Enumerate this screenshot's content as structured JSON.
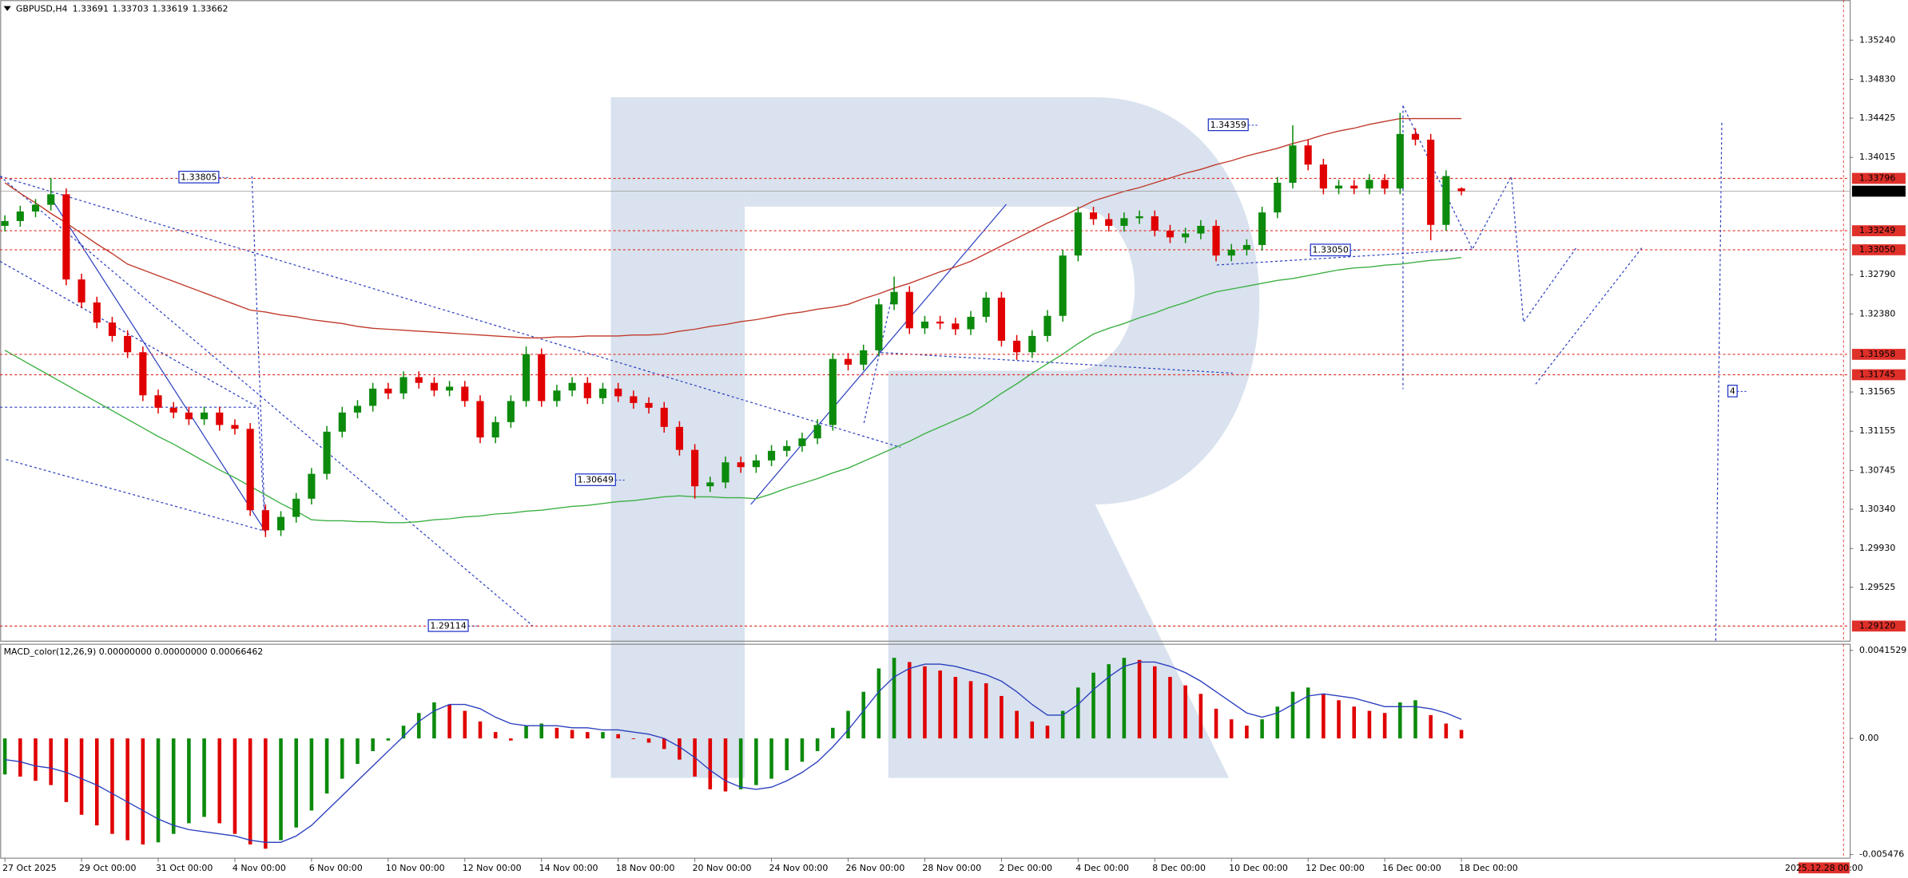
{
  "chart_data": {
    "type": "candlestick",
    "symbol": "GBPUSD,H4",
    "categories": [
      "27 Oct 2025",
      null,
      null,
      null,
      null,
      "29 Oct 00:00",
      null,
      null,
      null,
      null,
      "31 Oct 00:00",
      null,
      null,
      null,
      null,
      "4 Nov 00:00",
      null,
      null,
      null,
      null,
      "6 Nov 00:00",
      null,
      null,
      null,
      null,
      "10 Nov 00:00",
      null,
      null,
      null,
      null,
      "12 Nov 00:00",
      null,
      null,
      null,
      null,
      "14 Nov 00:00",
      null,
      null,
      null,
      null,
      "18 Nov 00:00",
      null,
      null,
      null,
      null,
      "20 Nov 00:00",
      null,
      null,
      null,
      null,
      "24 Nov 00:00",
      null,
      null,
      null,
      null,
      "26 Nov 00:00",
      null,
      null,
      null,
      null,
      "28 Nov 00:00",
      null,
      null,
      null,
      null,
      "2 Dec 00:00",
      null,
      null,
      null,
      null,
      "4 Dec 00:00",
      null,
      null,
      null,
      null,
      "8 Dec 00:00",
      null,
      null,
      null,
      null,
      "10 Dec 00:00",
      null,
      null,
      null,
      null,
      "12 Dec 00:00",
      null,
      null,
      null,
      null,
      "16 Dec 00:00",
      null,
      null,
      null,
      null,
      "18 Dec 00:00"
    ],
    "open": [
      1.333,
      1.3335,
      1.3345,
      1.3352,
      1.3363,
      1.3274,
      1.325,
      1.3229,
      1.3215,
      1.3198,
      1.3153,
      1.314,
      1.3135,
      1.3128,
      1.3135,
      1.3122,
      1.3118,
      1.3033,
      1.3012,
      1.3026,
      1.3045,
      1.3071,
      1.3115,
      1.3135,
      1.3142,
      1.316,
      1.3155,
      1.3172,
      1.3166,
      1.3158,
      1.3162,
      1.3147,
      1.3109,
      1.3125,
      1.3147,
      1.3196,
      1.3147,
      1.3158,
      1.3166,
      1.315,
      1.316,
      1.3152,
      1.3145,
      1.314,
      1.312,
      1.3096,
      1.3058,
      1.3062,
      1.3083,
      1.3078,
      1.3085,
      1.3095,
      1.31,
      1.3108,
      1.3122,
      1.3191,
      1.3185,
      1.32,
      1.3248,
      1.3261,
      1.3223,
      1.323,
      1.3228,
      1.3222,
      1.3235,
      1.3255,
      1.321,
      1.3198,
      1.3215,
      1.3236,
      1.3299,
      1.3344,
      1.3337,
      1.333,
      1.3338,
      1.334,
      1.3325,
      1.3318,
      1.3322,
      1.333,
      1.3299,
      1.3305,
      1.331,
      1.3344,
      1.3375,
      1.3414,
      1.3394,
      1.3369,
      1.3372,
      1.3369,
      1.3378,
      1.3369,
      1.3426,
      1.342,
      1.3331,
      1.33691
    ],
    "high": [
      1.3341,
      1.3351,
      1.3358,
      1.338,
      1.3369,
      1.328,
      1.3256,
      1.3235,
      1.3221,
      1.3204,
      1.3159,
      1.3146,
      1.3141,
      1.3141,
      1.3141,
      1.3128,
      1.3124,
      1.3039,
      1.3032,
      1.3051,
      1.3077,
      1.3121,
      1.3141,
      1.3148,
      1.3166,
      1.3166,
      1.3178,
      1.3178,
      1.3172,
      1.3168,
      1.3168,
      1.3153,
      1.3131,
      1.3153,
      1.3204,
      1.3202,
      1.3164,
      1.3172,
      1.3172,
      1.3166,
      1.3166,
      1.3158,
      1.3151,
      1.3146,
      1.3126,
      1.3102,
      1.3068,
      1.3089,
      1.3089,
      1.3091,
      1.3101,
      1.3106,
      1.3114,
      1.3128,
      1.3197,
      1.3197,
      1.3206,
      1.3254,
      1.3277,
      1.3267,
      1.3236,
      1.3236,
      1.3234,
      1.3241,
      1.3261,
      1.3261,
      1.3216,
      1.3221,
      1.3242,
      1.3305,
      1.335,
      1.335,
      1.3343,
      1.3344,
      1.3346,
      1.3346,
      1.3331,
      1.3328,
      1.3336,
      1.3336,
      1.3311,
      1.3316,
      1.335,
      1.3381,
      1.3435,
      1.342,
      1.34,
      1.3378,
      1.3378,
      1.3384,
      1.3384,
      1.3448,
      1.3432,
      1.3426,
      1.3388,
      1.33703
    ],
    "low": [
      1.3324,
      1.3329,
      1.3339,
      1.3346,
      1.3268,
      1.3244,
      1.3223,
      1.3209,
      1.3192,
      1.3147,
      1.3134,
      1.3129,
      1.3122,
      1.3122,
      1.3116,
      1.3112,
      1.3027,
      1.3005,
      1.3006,
      1.302,
      1.3039,
      1.3065,
      1.3109,
      1.3129,
      1.3136,
      1.3149,
      1.3149,
      1.316,
      1.3152,
      1.3152,
      1.3141,
      1.3103,
      1.3103,
      1.3119,
      1.3141,
      1.3141,
      1.3141,
      1.3152,
      1.3144,
      1.3144,
      1.3146,
      1.3139,
      1.3134,
      1.3114,
      1.309,
      1.3045,
      1.3052,
      1.3056,
      1.3072,
      1.3072,
      1.3079,
      1.3089,
      1.3094,
      1.3102,
      1.3116,
      1.3179,
      1.3179,
      1.3194,
      1.3242,
      1.3217,
      1.3217,
      1.3222,
      1.3216,
      1.3216,
      1.3229,
      1.3204,
      1.319,
      1.3192,
      1.3209,
      1.323,
      1.3293,
      1.3331,
      1.3324,
      1.3324,
      1.3332,
      1.3319,
      1.3312,
      1.3312,
      1.3316,
      1.3293,
      1.3293,
      1.3299,
      1.3304,
      1.3338,
      1.3369,
      1.3388,
      1.3363,
      1.3363,
      1.3363,
      1.3363,
      1.3363,
      1.3363,
      1.3414,
      1.3315,
      1.3325,
      1.33619
    ],
    "close": [
      1.3335,
      1.3345,
      1.3352,
      1.3363,
      1.3274,
      1.325,
      1.3229,
      1.3215,
      1.3198,
      1.3153,
      1.314,
      1.3135,
      1.3128,
      1.3135,
      1.3122,
      1.3118,
      1.3033,
      1.3012,
      1.3026,
      1.3045,
      1.3071,
      1.3115,
      1.3135,
      1.3142,
      1.316,
      1.3155,
      1.3172,
      1.3166,
      1.3158,
      1.3162,
      1.3147,
      1.3109,
      1.3125,
      1.3147,
      1.3196,
      1.3147,
      1.3158,
      1.3166,
      1.315,
      1.316,
      1.3152,
      1.3145,
      1.314,
      1.312,
      1.3096,
      1.3058,
      1.3062,
      1.3083,
      1.3078,
      1.3085,
      1.3095,
      1.31,
      1.3108,
      1.3122,
      1.3191,
      1.3185,
      1.32,
      1.3248,
      1.3261,
      1.3223,
      1.323,
      1.3228,
      1.3222,
      1.3235,
      1.3255,
      1.321,
      1.3198,
      1.3215,
      1.3236,
      1.3299,
      1.3344,
      1.3337,
      1.333,
      1.3338,
      1.334,
      1.3325,
      1.3318,
      1.3322,
      1.333,
      1.3299,
      1.3305,
      1.331,
      1.3344,
      1.3375,
      1.3414,
      1.3394,
      1.3369,
      1.3372,
      1.3369,
      1.3378,
      1.3369,
      1.3426,
      1.342,
      1.3331,
      1.3382,
      1.33662
    ],
    "up_color": "#0c8a0c",
    "down_color": "#e00000",
    "ma_lines": [
      {
        "color": "#c0392b",
        "values": [
          1.3375,
          1.3364,
          1.3354,
          1.3343,
          1.3333,
          1.3322,
          1.3311,
          1.3301,
          1.329,
          1.3284,
          1.3278,
          1.3272,
          1.3266,
          1.326,
          1.3254,
          1.3248,
          1.3242,
          1.324,
          1.3237,
          1.3235,
          1.3232,
          1.323,
          1.3228,
          1.3225,
          1.3223,
          1.3222,
          1.3221,
          1.322,
          1.3219,
          1.3218,
          1.3217,
          1.3216,
          1.3215,
          1.3214,
          1.3213,
          1.3213,
          1.3214,
          1.3214,
          1.3215,
          1.3215,
          1.3215,
          1.3216,
          1.3216,
          1.3217,
          1.322,
          1.3222,
          1.3225,
          1.3227,
          1.323,
          1.3232,
          1.3235,
          1.3238,
          1.324,
          1.3243,
          1.3245,
          1.3248,
          1.3254,
          1.3259,
          1.3265,
          1.327,
          1.3276,
          1.3282,
          1.3287,
          1.3293,
          1.3301,
          1.3309,
          1.3317,
          1.3325,
          1.3333,
          1.334,
          1.3348,
          1.3356,
          1.3361,
          1.3366,
          1.337,
          1.3375,
          1.338,
          1.3385,
          1.3389,
          1.3394,
          1.3398,
          1.3403,
          1.3407,
          1.3411,
          1.3416,
          1.342,
          1.3425,
          1.3429,
          1.3432,
          1.3436,
          1.3439,
          1.3442,
          1.3442,
          1.3442,
          1.3442,
          1.3442
        ]
      },
      {
        "color": "#3cb043",
        "values": [
          1.32,
          1.3191,
          1.3182,
          1.3173,
          1.3164,
          1.3155,
          1.3146,
          1.3137,
          1.3128,
          1.3119,
          1.311,
          1.3102,
          1.3093,
          1.3084,
          1.3075,
          1.3067,
          1.3058,
          1.3049,
          1.304,
          1.3032,
          1.3023,
          1.3022,
          1.3022,
          1.3021,
          1.3021,
          1.302,
          1.302,
          1.3021,
          1.3023,
          1.3024,
          1.3026,
          1.3027,
          1.3029,
          1.303,
          1.3032,
          1.3033,
          1.3035,
          1.3037,
          1.3038,
          1.304,
          1.3042,
          1.3043,
          1.3045,
          1.3047,
          1.3048,
          1.3047,
          1.3047,
          1.3046,
          1.3046,
          1.3045,
          1.305,
          1.3056,
          1.3061,
          1.3066,
          1.3072,
          1.3077,
          1.3084,
          1.3091,
          1.3098,
          1.3105,
          1.3113,
          1.312,
          1.3127,
          1.3134,
          1.3144,
          1.3155,
          1.3165,
          1.3176,
          1.3186,
          1.3196,
          1.3207,
          1.3217,
          1.3223,
          1.3228,
          1.3234,
          1.3239,
          1.3245,
          1.325,
          1.3256,
          1.3261,
          1.3264,
          1.3267,
          1.327,
          1.3273,
          1.3275,
          1.3278,
          1.3281,
          1.3284,
          1.3286,
          1.3287,
          1.3289,
          1.329,
          1.3292,
          1.3294,
          1.3295,
          1.3297
        ]
      }
    ],
    "ylim": [
      1.28968,
      1.35659
    ],
    "yticks": [
      {
        "value": 1.3524,
        "label": "1.35240"
      },
      {
        "value": 1.3483,
        "label": "1.34830"
      },
      1.34425,
      1.34015,
      {
        "value": 1.3279,
        "label": "1.32790"
      },
      {
        "value": 1.3238,
        "label": "1.32380"
      },
      1.31565,
      1.31155,
      1.30745,
      {
        "value": 1.3034,
        "label": "1.30340"
      },
      {
        "value": 1.2993,
        "label": "1.29930"
      },
      1.29525
    ],
    "levels": [
      1.33796,
      1.33249,
      {
        "value": 1.3305,
        "label": "1.33050"
      },
      1.31958,
      1.31745,
      {
        "value": 1.2912,
        "label": "1.29120"
      }
    ],
    "level_color": "#e0302a",
    "current_price": 1.33662,
    "annotations": [
      "1.33805",
      "1.34359",
      "1.33050",
      "1.30649",
      "1.29114",
      "4"
    ],
    "annotation_color": "#1a2fc4",
    "future_date": "2025.12.28 00:00",
    "macd": {
      "title": "MACD_color(12,26,9) 0.00000000 0.00000000 0.00066462",
      "ylim": [
        -0.00559,
        0.00444
      ],
      "yticks": [
        0.0041529,
        {
          "value": 0,
          "label": "0.00"
        },
        -0.005476
      ],
      "histogram": [
        -0.0017,
        -0.0018,
        -0.002,
        -0.0022,
        -0.003,
        -0.0036,
        -0.0041,
        -0.0045,
        -0.0048,
        -0.005,
        -0.0049,
        -0.0045,
        -0.004,
        -0.0037,
        -0.004,
        -0.0045,
        -0.005,
        -0.0052,
        -0.0048,
        -0.0042,
        -0.0034,
        -0.0026,
        -0.0019,
        -0.0012,
        -0.0006,
        -0.0001,
        0.0006,
        0.0012,
        0.0017,
        0.0016,
        0.0013,
        0.0008,
        0.0003,
        -0.0001,
        0.0006,
        0.0007,
        0.0005,
        0.0004,
        0.0003,
        0.0003,
        0.0002,
        0.0,
        -0.0002,
        -0.0005,
        -0.001,
        -0.0018,
        -0.0024,
        -0.0025,
        -0.0024,
        -0.0022,
        -0.0019,
        -0.0015,
        -0.0011,
        -0.0006,
        0.0005,
        0.0013,
        0.0022,
        0.0033,
        0.0038,
        0.0036,
        0.0034,
        0.0032,
        0.0029,
        0.0027,
        0.0026,
        0.002,
        0.0013,
        0.0008,
        0.0006,
        0.0013,
        0.0024,
        0.0031,
        0.0035,
        0.0038,
        0.0037,
        0.0034,
        0.0029,
        0.0025,
        0.0021,
        0.0014,
        0.0009,
        0.0006,
        0.0009,
        0.0015,
        0.0022,
        0.0024,
        0.0021,
        0.0018,
        0.0015,
        0.0013,
        0.0012,
        0.0017,
        0.0018,
        0.0011,
        0.0007,
        0.0004
      ],
      "signal": [
        -0.001,
        -0.0011,
        -0.0013,
        -0.0014,
        -0.0016,
        -0.0019,
        -0.0022,
        -0.0026,
        -0.003,
        -0.0034,
        -0.0038,
        -0.0041,
        -0.0043,
        -0.0044,
        -0.0045,
        -0.0046,
        -0.0048,
        -0.0049,
        -0.0049,
        -0.0046,
        -0.0041,
        -0.0034,
        -0.0027,
        -0.002,
        -0.0013,
        -0.0006,
        0.0001,
        0.0008,
        0.0013,
        0.0016,
        0.0016,
        0.0014,
        0.001,
        0.0007,
        0.0006,
        0.0006,
        0.0006,
        0.0005,
        0.0005,
        0.0004,
        0.0004,
        0.0003,
        0.0002,
        0.0,
        -0.0004,
        -0.0009,
        -0.0015,
        -0.002,
        -0.0023,
        -0.0024,
        -0.0023,
        -0.002,
        -0.0016,
        -0.0011,
        -0.0004,
        0.0004,
        0.0013,
        0.0022,
        0.0029,
        0.0033,
        0.0035,
        0.0035,
        0.0034,
        0.0032,
        0.003,
        0.0027,
        0.0022,
        0.0016,
        0.0011,
        0.0011,
        0.0016,
        0.0023,
        0.0029,
        0.0034,
        0.0036,
        0.0036,
        0.0034,
        0.0031,
        0.0027,
        0.0022,
        0.0017,
        0.0012,
        0.001,
        0.0012,
        0.0016,
        0.002,
        0.0021,
        0.002,
        0.0019,
        0.0017,
        0.0015,
        0.0015,
        0.0015,
        0.0014,
        0.0012,
        0.0009
      ],
      "up_color": "#0c8a0c",
      "down_color": "#e00000",
      "signal_color": "#2b3fbf"
    }
  }
}
